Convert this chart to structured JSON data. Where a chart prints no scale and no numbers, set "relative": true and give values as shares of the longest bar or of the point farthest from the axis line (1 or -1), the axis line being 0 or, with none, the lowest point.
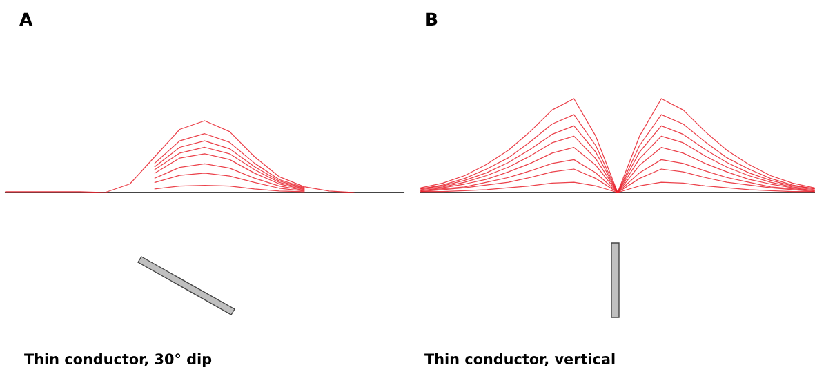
{
  "chart_data": [
    {
      "type": "line",
      "title": "A",
      "relative": true,
      "annotations": [
        "Thin conductor, 30° dip"
      ],
      "categories": [
        null,
        null,
        null,
        null,
        null,
        null,
        null,
        null,
        null,
        null,
        null,
        null,
        null,
        null,
        null,
        null,
        null
      ],
      "series": [
        {
          "color": "#e8202a",
          "values": [
            null,
            null,
            null,
            null,
            null,
            null,
            0.05,
            0.09,
            0.1,
            0.09,
            0.05,
            0.02,
            0.01,
            null,
            null,
            null,
            null
          ]
        },
        {
          "color": "#e8202a",
          "values": [
            null,
            null,
            null,
            null,
            null,
            null,
            0.14,
            0.24,
            0.27,
            0.23,
            0.14,
            0.06,
            0.02,
            null,
            null,
            null,
            null
          ]
        },
        {
          "color": "#e8202a",
          "values": [
            null,
            null,
            null,
            null,
            null,
            null,
            0.2,
            0.35,
            0.4,
            0.34,
            0.2,
            0.09,
            0.03,
            null,
            null,
            null,
            null
          ]
        },
        {
          "color": "#e8202a",
          "values": [
            null,
            null,
            null,
            null,
            null,
            null,
            0.27,
            0.48,
            0.54,
            0.46,
            0.27,
            0.12,
            0.04,
            null,
            null,
            null,
            null
          ]
        },
        {
          "color": "#e8202a",
          "values": [
            null,
            null,
            null,
            null,
            null,
            null,
            0.32,
            0.55,
            0.63,
            0.54,
            0.32,
            0.14,
            0.05,
            null,
            null,
            null,
            null
          ]
        },
        {
          "color": "#e8202a",
          "values": [
            null,
            null,
            null,
            null,
            null,
            null,
            0.36,
            0.63,
            0.72,
            0.61,
            0.36,
            0.16,
            0.06,
            null,
            null,
            null,
            null
          ]
        },
        {
          "color": "#e8202a",
          "values": [
            null,
            null,
            null,
            null,
            null,
            null,
            0.41,
            0.72,
            0.82,
            0.7,
            0.41,
            0.18,
            0.07,
            null,
            null,
            null,
            null
          ]
        },
        {
          "color": "#e8202a",
          "values": [
            0.01,
            0.01,
            0.01,
            0.01,
            0,
            0.12,
            0.5,
            0.88,
            1,
            0.85,
            0.5,
            0.22,
            0.08,
            0.02,
            0,
            null,
            null
          ]
        }
      ]
    },
    {
      "type": "line",
      "title": "B",
      "relative": true,
      "annotations": [
        "Thin conductor, vertical"
      ],
      "categories": [
        null,
        null,
        null,
        null,
        null,
        null,
        null,
        null,
        null,
        null,
        null,
        null,
        null,
        null,
        null,
        null,
        null,
        null,
        null
      ],
      "series": [
        {
          "color": "#e8202a",
          "values": [
            0.01,
            0.01,
            0.02,
            0.03,
            0.05,
            0.07,
            0.1,
            0.11,
            0.07,
            0,
            0.07,
            0.11,
            0.1,
            0.07,
            0.05,
            0.03,
            0.02,
            0.01,
            0.01
          ]
        },
        {
          "color": "#e8202a",
          "values": [
            0.01,
            0.03,
            0.05,
            0.08,
            0.11,
            0.16,
            0.22,
            0.25,
            0.15,
            0,
            0.15,
            0.25,
            0.22,
            0.16,
            0.11,
            0.08,
            0.05,
            0.03,
            0.01
          ]
        },
        {
          "color": "#e8202a",
          "values": [
            0.02,
            0.04,
            0.06,
            0.11,
            0.16,
            0.23,
            0.31,
            0.35,
            0.21,
            0,
            0.21,
            0.35,
            0.31,
            0.23,
            0.16,
            0.11,
            0.06,
            0.04,
            0.02
          ]
        },
        {
          "color": "#e8202a",
          "values": [
            0.02,
            0.05,
            0.09,
            0.14,
            0.22,
            0.31,
            0.42,
            0.48,
            0.29,
            0,
            0.29,
            0.48,
            0.42,
            0.31,
            0.22,
            0.14,
            0.09,
            0.05,
            0.02
          ]
        },
        {
          "color": "#e8202a",
          "values": [
            0.03,
            0.06,
            0.11,
            0.18,
            0.27,
            0.39,
            0.53,
            0.6,
            0.36,
            0,
            0.36,
            0.6,
            0.53,
            0.39,
            0.27,
            0.18,
            0.11,
            0.06,
            0.03
          ]
        },
        {
          "color": "#e8202a",
          "values": [
            0.04,
            0.07,
            0.13,
            0.21,
            0.32,
            0.46,
            0.62,
            0.71,
            0.43,
            0,
            0.43,
            0.71,
            0.62,
            0.46,
            0.32,
            0.21,
            0.13,
            0.07,
            0.04
          ]
        },
        {
          "color": "#e8202a",
          "values": [
            0.04,
            0.08,
            0.15,
            0.25,
            0.37,
            0.54,
            0.73,
            0.83,
            0.5,
            0,
            0.5,
            0.83,
            0.73,
            0.54,
            0.37,
            0.25,
            0.15,
            0.08,
            0.04
          ]
        },
        {
          "color": "#e8202a",
          "values": [
            0.05,
            0.1,
            0.18,
            0.3,
            0.45,
            0.65,
            0.88,
            1,
            0.6,
            0,
            0.6,
            1,
            0.88,
            0.65,
            0.45,
            0.3,
            0.18,
            0.1,
            0.05
          ]
        }
      ]
    }
  ]
}
